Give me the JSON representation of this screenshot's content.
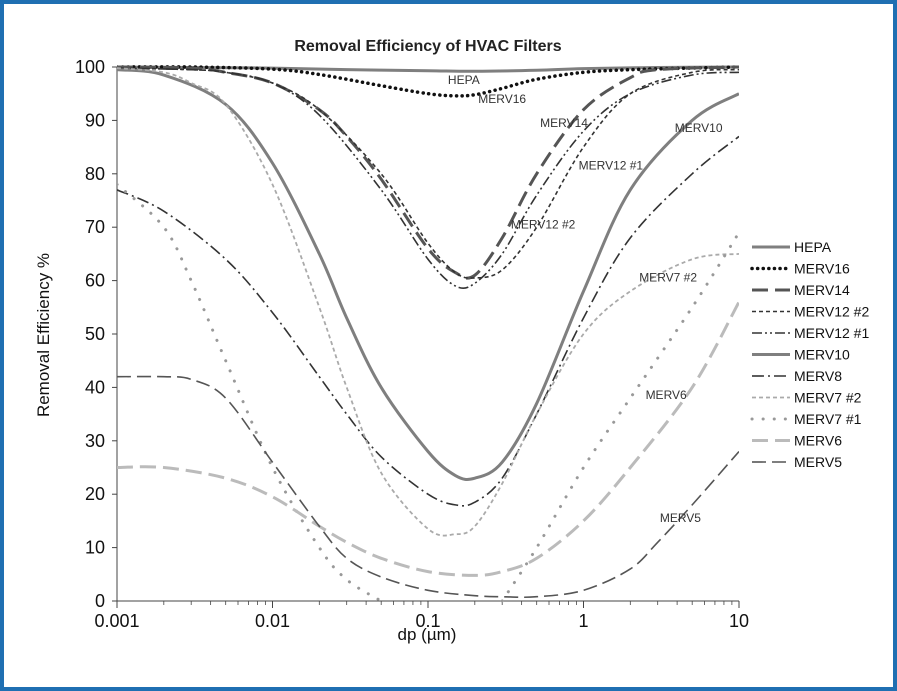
{
  "chart_data": {
    "type": "line",
    "title": "Removal Efficiency of HVAC Filters",
    "xlabel": "dp (µm)",
    "ylabel": "Removal Efficiency %",
    "xscale": "log",
    "xlim": [
      0.001,
      10
    ],
    "ylim": [
      0,
      100
    ],
    "x_ticks": [
      "0.001",
      "0.01",
      "0.1",
      "1",
      "10"
    ],
    "y_ticks": [
      "0",
      "10",
      "20",
      "30",
      "40",
      "50",
      "60",
      "70",
      "80",
      "90",
      "100"
    ],
    "grid": false,
    "legend_position": "right",
    "series": [
      {
        "name": "HEPA",
        "label": "HEPA",
        "color": "#7f7f7f",
        "dash": "solid",
        "width": 3,
        "x": [
          0.001,
          0.003,
          0.01,
          0.03,
          0.1,
          0.2,
          0.5,
          1,
          3,
          10
        ],
        "y": [
          100,
          99.9,
          99.8,
          99.5,
          99.3,
          99.2,
          99.4,
          99.7,
          99.9,
          100
        ]
      },
      {
        "name": "MERV16",
        "label": "MERV16",
        "color": "#111111",
        "dash": "dot",
        "width": 3.5,
        "x": [
          0.001,
          0.003,
          0.01,
          0.02,
          0.05,
          0.1,
          0.15,
          0.2,
          0.3,
          0.5,
          1,
          2,
          5,
          10
        ],
        "y": [
          100,
          100,
          99.6,
          98.6,
          96.5,
          95,
          94.6,
          94.8,
          96,
          97.7,
          99,
          99.5,
          99.8,
          100
        ]
      },
      {
        "name": "MERV14",
        "label": "MERV14",
        "color": "#555555",
        "dash": "longdash",
        "width": 3,
        "x": [
          0.001,
          0.003,
          0.005,
          0.01,
          0.02,
          0.03,
          0.05,
          0.1,
          0.15,
          0.2,
          0.3,
          0.5,
          1,
          2,
          3,
          10
        ],
        "y": [
          100,
          99.8,
          99,
          97,
          92,
          87,
          79,
          66,
          61.5,
          61,
          68,
          80,
          92,
          98,
          99.5,
          100
        ]
      },
      {
        "name": "MERV12 #2",
        "label": "MERV12 #2",
        "color": "#333333",
        "dash": "shortdash",
        "width": 1.6,
        "x": [
          0.001,
          0.003,
          0.005,
          0.01,
          0.02,
          0.05,
          0.1,
          0.15,
          0.2,
          0.3,
          0.5,
          1,
          2,
          5,
          10
        ],
        "y": [
          99.8,
          99.5,
          99,
          97,
          92,
          80,
          67,
          61.5,
          60.5,
          62,
          70,
          85,
          95,
          99,
          99.5
        ]
      },
      {
        "name": "MERV12 #1",
        "label": "MERV12 #1",
        "color": "#333333",
        "dash": "dashdotdot",
        "width": 1.6,
        "x": [
          0.001,
          0.003,
          0.005,
          0.01,
          0.02,
          0.05,
          0.1,
          0.15,
          0.2,
          0.3,
          0.5,
          1,
          2,
          5,
          10
        ],
        "y": [
          99.8,
          99.5,
          99,
          97,
          91,
          77,
          64,
          59,
          59.5,
          65,
          76,
          88,
          95,
          98.5,
          99
        ]
      },
      {
        "name": "MERV10",
        "label": "MERV10",
        "color": "#7f7f7f",
        "dash": "solid",
        "width": 3,
        "x": [
          0.001,
          0.002,
          0.005,
          0.01,
          0.02,
          0.03,
          0.05,
          0.1,
          0.15,
          0.2,
          0.3,
          0.5,
          1,
          2,
          5,
          10
        ],
        "y": [
          99.5,
          98.5,
          93,
          82,
          65,
          53,
          40,
          28,
          23.5,
          23,
          26,
          37,
          58,
          77,
          90,
          95
        ]
      },
      {
        "name": "MERV8",
        "label": "MERV8",
        "color": "#333333",
        "dash": "dashdot",
        "width": 1.6,
        "x": [
          0.001,
          0.002,
          0.005,
          0.01,
          0.02,
          0.03,
          0.05,
          0.1,
          0.15,
          0.2,
          0.3,
          0.5,
          1,
          2,
          5,
          10
        ],
        "y": [
          77,
          73,
          64,
          54,
          42,
          35,
          27,
          20,
          18,
          18.5,
          23,
          35,
          53,
          68,
          80,
          87
        ]
      },
      {
        "name": "MERV7 #2",
        "label": "MERV7 #2",
        "color": "#aaaaaa",
        "dash": "shortdash",
        "width": 1.8,
        "x": [
          0.001,
          0.002,
          0.003,
          0.005,
          0.01,
          0.02,
          0.03,
          0.05,
          0.1,
          0.15,
          0.2,
          0.3,
          0.5,
          1,
          2,
          5,
          10
        ],
        "y": [
          99.8,
          99,
          97,
          93,
          78,
          55,
          40,
          24,
          13.5,
          12.5,
          14,
          22,
          35,
          50,
          58,
          64,
          65
        ]
      },
      {
        "name": "MERV7 #1",
        "label": "MERV7 #1",
        "color": "#999999",
        "dash": "sparse-dot",
        "width": 3,
        "x": [
          0.001,
          0.002,
          0.003,
          0.005,
          0.01,
          0.02,
          0.03,
          0.05
        ],
        "y": [
          78,
          70,
          60,
          45,
          25,
          10,
          4,
          0
        ]
      },
      {
        "name": "MERV7 #1 (upper)",
        "color": "#999999",
        "dash": "sparse-dot",
        "width": 3,
        "x": [
          0.3,
          0.5,
          1,
          2,
          5,
          10
        ],
        "y": [
          0,
          10,
          25,
          38,
          55,
          69
        ]
      },
      {
        "name": "MERV6",
        "label": "MERV6",
        "color": "#bbbbbb",
        "dash": "longdash",
        "width": 3,
        "x": [
          0.001,
          0.002,
          0.005,
          0.01,
          0.02,
          0.03,
          0.05,
          0.1,
          0.2,
          0.3,
          0.5,
          1,
          2,
          5,
          10
        ],
        "y": [
          25,
          25,
          23,
          19.5,
          14,
          11,
          8,
          5.5,
          4.8,
          5.5,
          8,
          15,
          25,
          40,
          56
        ]
      },
      {
        "name": "MERV5",
        "label": "MERV5",
        "color": "#555555",
        "dash": "longdash2",
        "width": 1.6,
        "x": [
          0.001,
          0.002,
          0.003,
          0.005,
          0.01,
          0.02,
          0.03,
          0.05,
          0.1,
          0.2,
          0.3,
          0.5,
          1,
          2,
          3,
          5,
          10
        ],
        "y": [
          42,
          42,
          41.5,
          38,
          26,
          14,
          8,
          4.5,
          2,
          1,
          0.8,
          0.8,
          2,
          6,
          11,
          18,
          28
        ]
      }
    ],
    "legend": [
      "HEPA",
      "MERV16",
      "MERV14",
      "MERV12 #2",
      "MERV12 #1",
      "MERV10",
      "MERV8",
      "MERV7 #2",
      "MERV7 #1",
      "MERV6",
      "MERV5"
    ],
    "annotations": [
      {
        "text": "HEPA",
        "x": 0.17,
        "y": 96.8
      },
      {
        "text": "MERV16",
        "x": 0.3,
        "y": 93.3
      },
      {
        "text": "MERV14",
        "x": 0.75,
        "y": 88.8
      },
      {
        "text": "MERV12 #1",
        "x": 1.5,
        "y": 80.8
      },
      {
        "text": "MERV10",
        "x": 5.5,
        "y": 87.8
      },
      {
        "text": "MERV12 #2",
        "x": 0.55,
        "y": 69.8
      },
      {
        "text": "MERV7 #2",
        "x": 3.5,
        "y": 59.8
      },
      {
        "text": "MERV6",
        "x": 3.4,
        "y": 37.8
      },
      {
        "text": "MERV5",
        "x": 4.2,
        "y": 14.8
      }
    ]
  }
}
